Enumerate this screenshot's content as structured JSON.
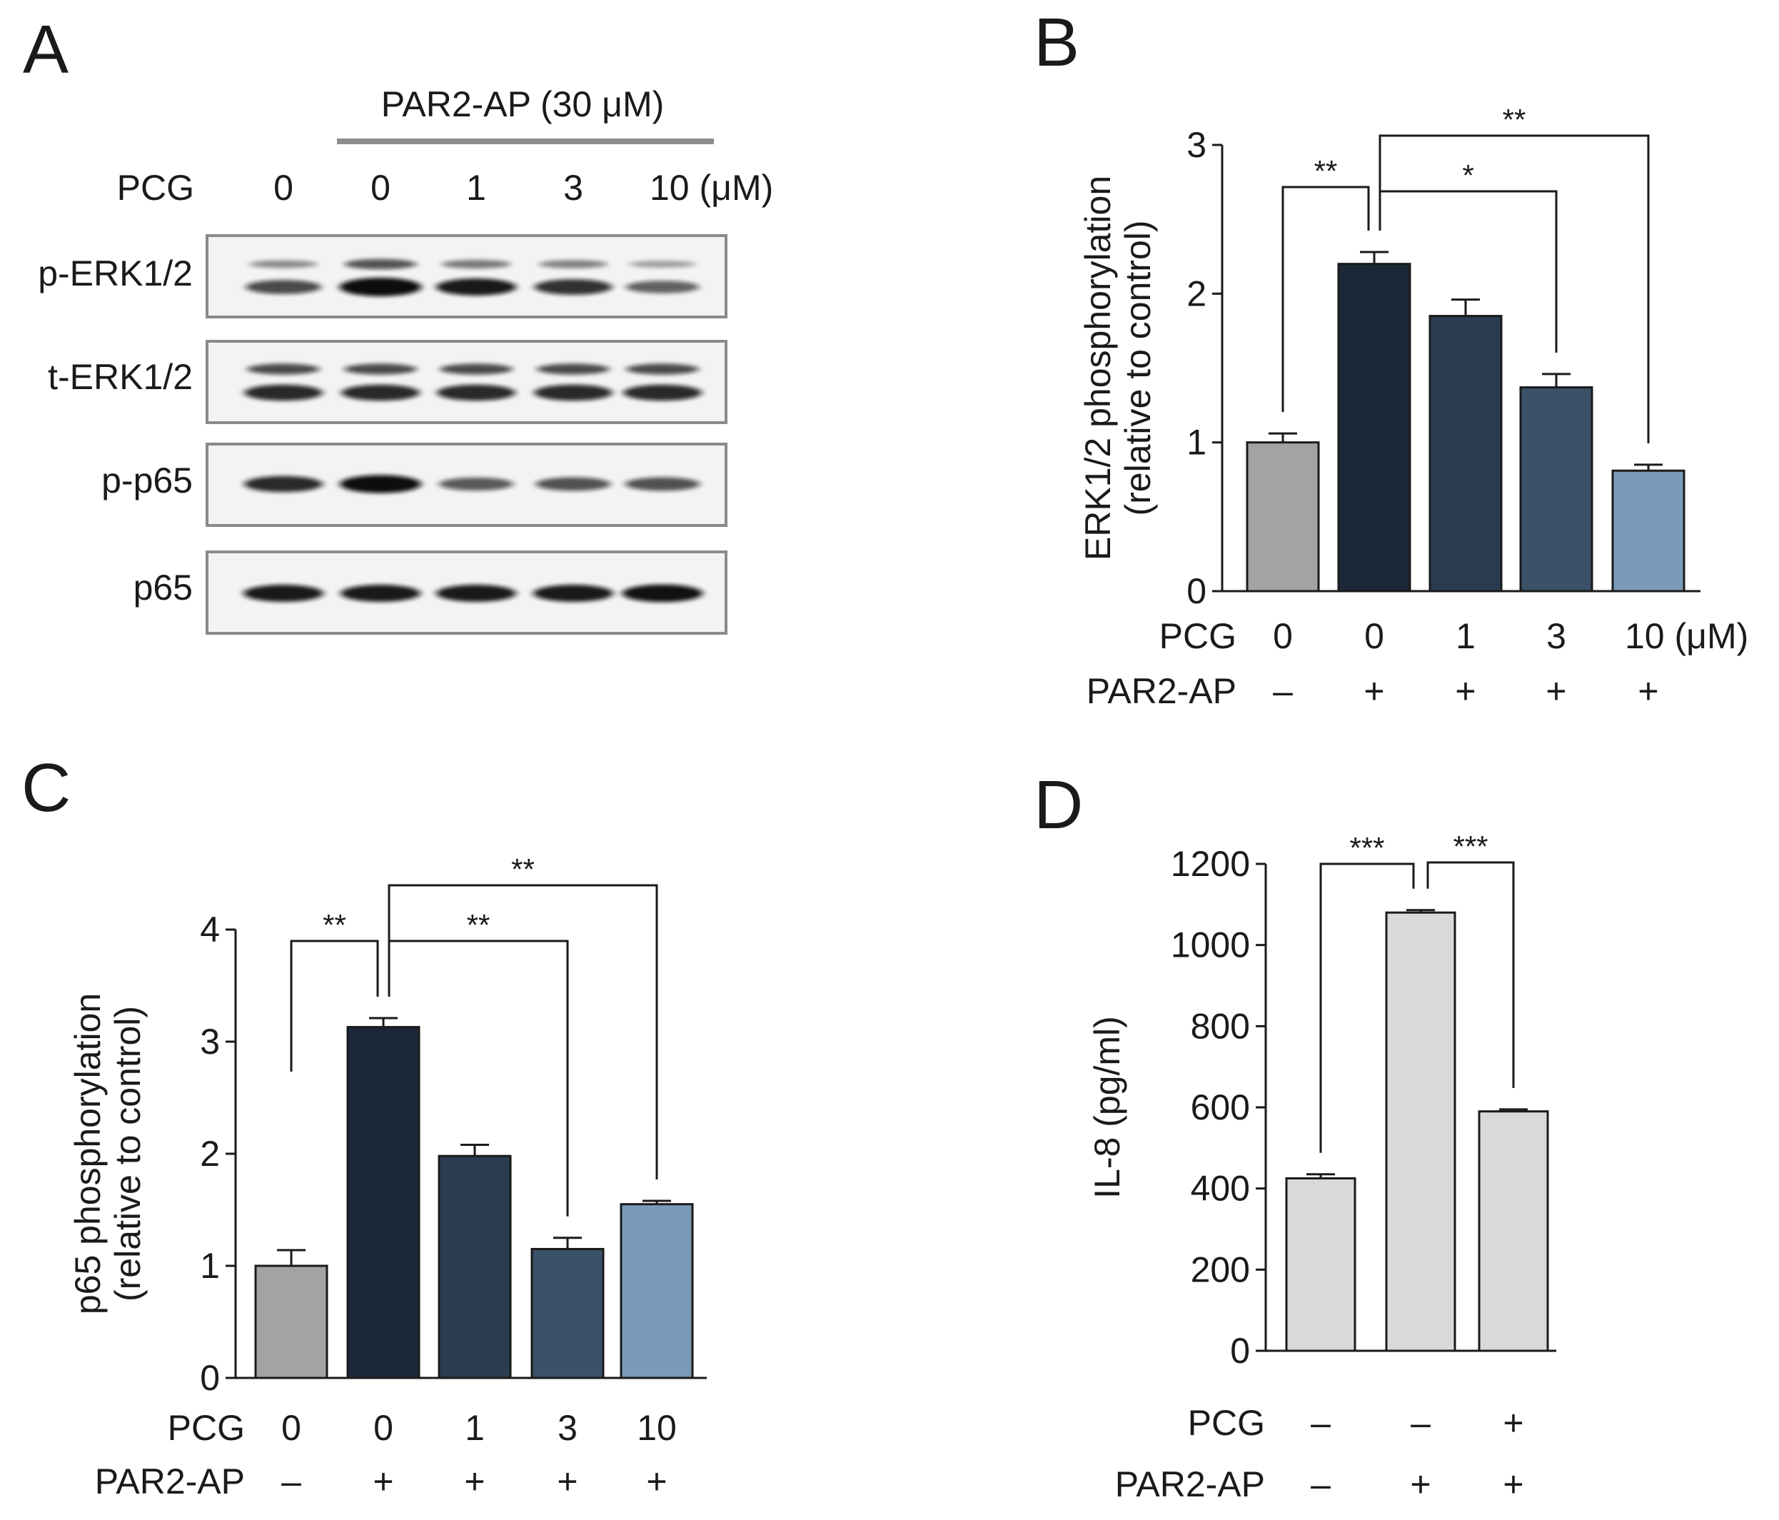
{
  "panels": {
    "A": "A",
    "B": "B",
    "C": "C",
    "D": "D"
  },
  "panel_a": {
    "treatment_label": "PAR2-AP (30 μM)",
    "row_label": "PCG",
    "lanes": [
      "0",
      "0",
      "1",
      "3",
      "10 (μM)"
    ],
    "blots": [
      {
        "name": "p-ERK1/2",
        "intensities": [
          0.55,
          1.0,
          0.85,
          0.7,
          0.4
        ],
        "upper_band": [
          0.25,
          0.55,
          0.35,
          0.3,
          0.15
        ]
      },
      {
        "name": "t-ERK1/2",
        "intensities": [
          0.75,
          0.75,
          0.75,
          0.75,
          0.75
        ],
        "upper_band": [
          0.6,
          0.6,
          0.6,
          0.6,
          0.6
        ]
      },
      {
        "name": "p-p65",
        "intensities": [
          0.75,
          0.95,
          0.45,
          0.5,
          0.5
        ],
        "upper_band": [
          0,
          0,
          0,
          0,
          0
        ]
      },
      {
        "name": "p65",
        "intensities": [
          0.85,
          0.85,
          0.85,
          0.85,
          0.9
        ],
        "upper_band": [
          0,
          0,
          0,
          0,
          0
        ]
      }
    ]
  },
  "colors": {
    "control": "#a3a3a3",
    "dose0": "#1b2838",
    "dose1": "#2b3c51",
    "dose3": "#3a5168",
    "dose10": "#7a9bb8",
    "il8": "#d9d9d9"
  },
  "chart_data": [
    {
      "type": "bar",
      "panel": "B",
      "ylabel": "ERK1/2 phosphorylation",
      "ylabel2": "(relative to control)",
      "ylim": [
        0,
        3
      ],
      "yticks": [
        "0",
        "1",
        "2",
        "3"
      ],
      "categories": [
        "0",
        "0",
        "1",
        "3",
        "10"
      ],
      "values": [
        1.0,
        2.2,
        1.85,
        1.37,
        0.81
      ],
      "errors": [
        0.06,
        0.08,
        0.11,
        0.09,
        0.04
      ],
      "colors": [
        "#a3a3a3",
        "#1b2838",
        "#2b3c51",
        "#3a5168",
        "#7a9bb8"
      ],
      "row1_label": "PCG",
      "row1": [
        "0",
        "0",
        "1",
        "3",
        "10 (μM)"
      ],
      "row2_label": "PAR2-AP",
      "row2": [
        "–",
        "+",
        "+",
        "+",
        "+"
      ],
      "significance": [
        {
          "from": 0,
          "to": 1,
          "label": "**"
        },
        {
          "from": 1,
          "to": 3,
          "label": "*"
        },
        {
          "from": 1,
          "to": 4,
          "label": "**"
        }
      ]
    },
    {
      "type": "bar",
      "panel": "C",
      "ylabel": "p65 phosphorylation",
      "ylabel2": "(relative to control)",
      "ylim": [
        0,
        4
      ],
      "yticks": [
        "0",
        "1",
        "2",
        "3",
        "4"
      ],
      "categories": [
        "0",
        "0",
        "1",
        "3",
        "10"
      ],
      "values": [
        1.0,
        3.13,
        1.98,
        1.15,
        1.55
      ],
      "errors": [
        0.14,
        0.08,
        0.1,
        0.1,
        0.03
      ],
      "colors": [
        "#a3a3a3",
        "#1b2838",
        "#2b3c51",
        "#3a5168",
        "#7a9bb8"
      ],
      "row1_label": "PCG",
      "row1": [
        "0",
        "0",
        "1",
        "3",
        "10"
      ],
      "row2_label": "PAR2-AP",
      "row2": [
        "–",
        "+",
        "+",
        "+",
        "+"
      ],
      "significance": [
        {
          "from": 0,
          "to": 1,
          "label": "**"
        },
        {
          "from": 1,
          "to": 3,
          "label": "**"
        },
        {
          "from": 1,
          "to": 4,
          "label": "**"
        }
      ]
    },
    {
      "type": "bar",
      "panel": "D",
      "ylabel": "IL-8 (pg/ml)",
      "ylabel2": "",
      "ylim": [
        0,
        1200
      ],
      "yticks": [
        "0",
        "200",
        "400",
        "600",
        "800",
        "1000",
        "1200"
      ],
      "categories": [
        "–/–",
        "–/+",
        "+/+"
      ],
      "values": [
        425,
        1080,
        590
      ],
      "errors": [
        10,
        6,
        5
      ],
      "colors": [
        "#d9d9d9",
        "#d9d9d9",
        "#d9d9d9"
      ],
      "row1_label": "PCG",
      "row1": [
        "–",
        "–",
        "+"
      ],
      "row2_label": "PAR2-AP",
      "row2": [
        "–",
        "+",
        "+"
      ],
      "significance": [
        {
          "from": 0,
          "to": 1,
          "label": "***"
        },
        {
          "from": 1,
          "to": 2,
          "label": "***"
        }
      ]
    }
  ]
}
